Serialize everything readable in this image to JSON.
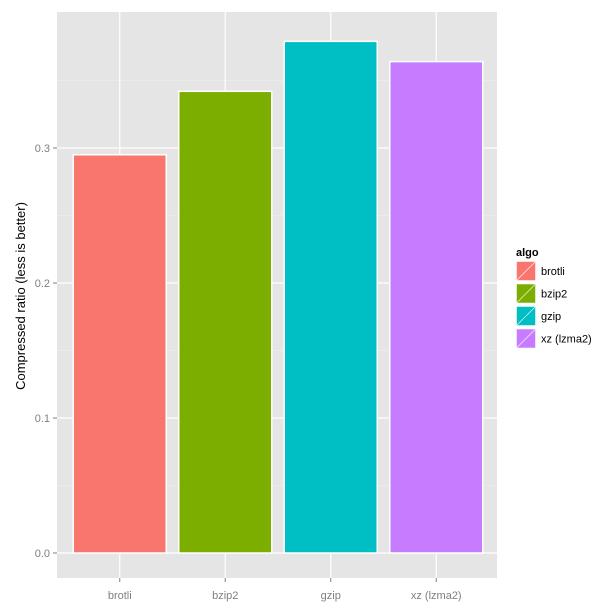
{
  "chart_data": {
    "type": "bar",
    "categories": [
      "brotli",
      "bzip2",
      "gzip",
      "xz (lzma2)"
    ],
    "values": [
      0.295,
      0.342,
      0.379,
      0.364
    ],
    "colors": [
      "#f8766d",
      "#7cae00",
      "#00bfc4",
      "#c77cff"
    ],
    "ylabel": "Compressed ratio (less is better)",
    "xlabel": "",
    "ylim": [
      0,
      0.4
    ],
    "yticks": [
      0.0,
      0.1,
      0.2,
      0.3
    ],
    "ytick_labels": [
      "0.0",
      "0.1",
      "0.2",
      "0.3"
    ],
    "grid": true,
    "panel_background": "#e5e5e5",
    "legend": {
      "title": "algo",
      "position": "right",
      "entries": [
        "brotli",
        "bzip2",
        "gzip",
        "xz (lzma2)"
      ]
    }
  }
}
